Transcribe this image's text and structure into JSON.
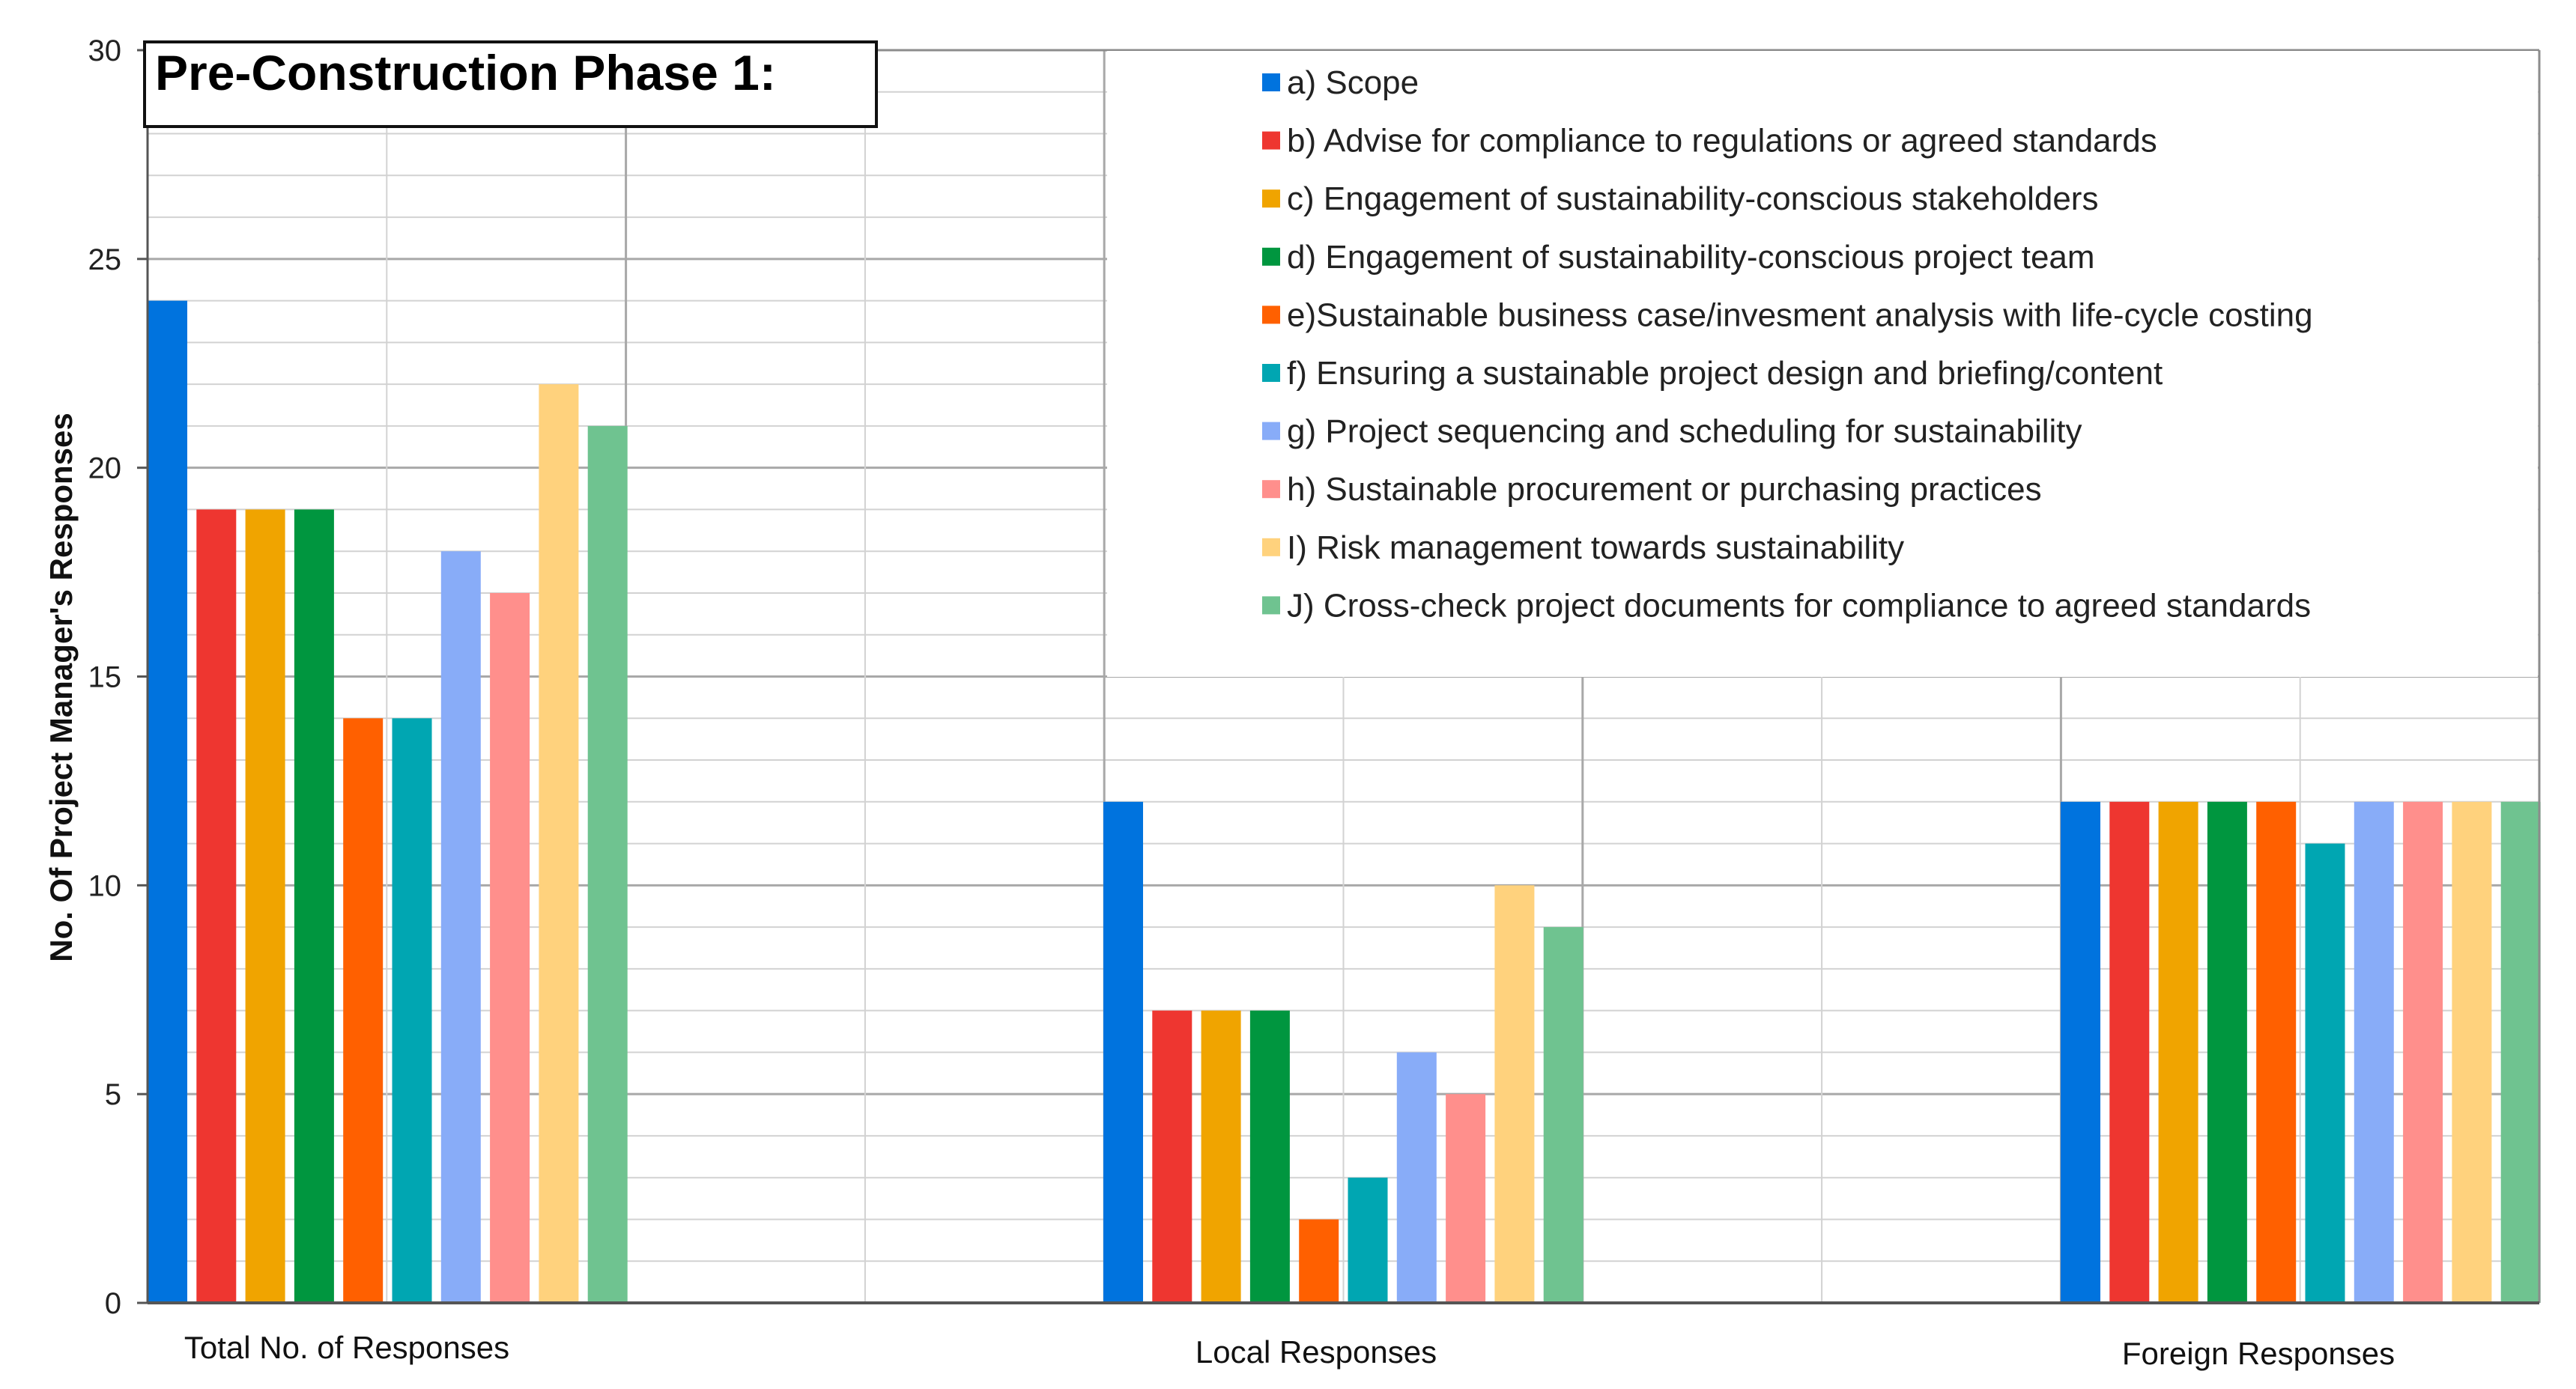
{
  "chart_data": {
    "type": "bar",
    "title": "Pre-Construction Phase 1:",
    "ylabel": "No. Of Project Manager's Responses",
    "xlabel": "",
    "ylim": [
      0,
      30
    ],
    "yticks": [
      0,
      5,
      10,
      15,
      20,
      25,
      30
    ],
    "grid": true,
    "legend_position": "top-right",
    "categories": [
      "Total No. of Responses",
      "Local Responses",
      "Foreign Responses"
    ],
    "series": [
      {
        "name": "a) Scope",
        "color": "#0073de",
        "values": [
          24,
          12,
          12
        ]
      },
      {
        "name": "b) Advise for compliance to regulations or agreed standards",
        "color": "#ee3630",
        "values": [
          19,
          7,
          12
        ]
      },
      {
        "name": "c) Engagement of sustainability-conscious stakeholders",
        "color": "#f0a400",
        "values": [
          19,
          7,
          12
        ]
      },
      {
        "name": "d) Engagement of sustainability-conscious project team",
        "color": "#00963f",
        "values": [
          19,
          7,
          12
        ]
      },
      {
        "name": "e)Sustainable business case/invesment analysis with life-cycle costing",
        "color": "#ff6000",
        "values": [
          14,
          2,
          12
        ]
      },
      {
        "name": "f) Ensuring a sustainable project design and briefing/content",
        "color": "#00a6b2",
        "values": [
          14,
          3,
          11
        ]
      },
      {
        "name": "g) Project sequencing and scheduling for sustainability",
        "color": "#88acf8",
        "values": [
          18,
          6,
          12
        ]
      },
      {
        "name": "h) Sustainable procurement or purchasing practices",
        "color": "#ff8f8c",
        "values": [
          17,
          5,
          12
        ]
      },
      {
        "name": "I) Risk management towards sustainability",
        "color": "#ffd27d",
        "values": [
          22,
          10,
          12
        ]
      },
      {
        "name": "J) Cross-check project documents for compliance to agreed standards",
        "color": "#6fc390",
        "values": [
          21,
          9,
          12
        ]
      }
    ]
  }
}
